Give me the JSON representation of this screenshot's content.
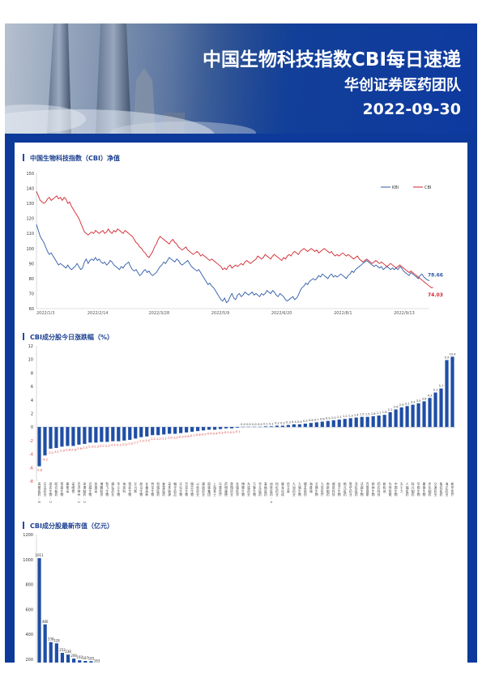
{
  "header": {
    "title": "中国生物科技指数CBI每日速递",
    "subtitle": "华创证券医药团队",
    "date": "2022-09-30"
  },
  "sections": {
    "nav_title": "中国生物科技指数（CBI）净值",
    "change_title": "CBI成分股今日涨跌幅（%）",
    "cap_title": "CBI成分股最新市值（亿元）"
  },
  "colors": {
    "frame": "#0d3a9a",
    "kbi": "#2e5aa8",
    "cbi": "#d0262f",
    "bar": "#1f4ea5",
    "negative_label": "#e0413f"
  },
  "chart_data": [
    {
      "type": "line",
      "title": "中国生物科技指数（CBI）净值",
      "x_ticks": [
        "2022/1/3",
        "2022/2/14",
        "2022/3/28",
        "2022/5/9",
        "2022/6/20",
        "2022/8/1",
        "2022/9/13"
      ],
      "ylim": [
        60,
        150
      ],
      "y_ticks": [
        60,
        70,
        80,
        90,
        100,
        110,
        120,
        130,
        140,
        150
      ],
      "legend": "top-right",
      "series": [
        {
          "name": "KBI",
          "color": "#2e5aa8",
          "last_label": "78.66",
          "values": [
            116,
            112,
            108,
            106,
            104,
            101,
            98,
            96,
            97,
            95,
            93,
            91,
            89,
            90,
            89,
            88,
            87,
            89,
            87,
            86,
            87,
            88,
            90,
            88,
            86,
            87,
            91,
            93,
            90,
            92,
            93,
            92,
            94,
            92,
            93,
            91,
            90,
            91,
            89,
            90,
            92,
            91,
            89,
            88,
            87,
            86,
            88,
            87,
            89,
            90,
            91,
            88,
            86,
            85,
            86,
            84,
            82,
            83,
            85,
            86,
            84,
            85,
            83,
            82,
            83,
            84,
            86,
            88,
            89,
            91,
            90,
            92,
            94,
            93,
            92,
            91,
            93,
            92,
            90,
            89,
            90,
            91,
            92,
            90,
            88,
            87,
            86,
            85,
            86,
            84,
            82,
            80,
            78,
            76,
            77,
            75,
            74,
            72,
            70,
            68,
            66,
            65,
            67,
            64,
            65,
            68,
            70,
            67,
            66,
            69,
            70,
            68,
            69,
            71,
            70,
            69,
            70,
            71,
            69,
            70,
            69,
            68,
            70,
            69,
            70,
            72,
            71,
            70,
            72,
            71,
            69,
            68,
            70,
            69,
            68,
            66,
            65,
            66,
            67,
            68,
            66,
            67,
            69,
            72,
            74,
            75,
            77,
            76,
            78,
            79,
            80,
            79,
            80,
            82,
            81,
            83,
            82,
            81,
            80,
            82,
            83,
            81,
            82,
            81,
            82,
            83,
            82,
            81,
            80,
            82,
            83,
            85,
            84,
            86,
            87,
            88,
            89,
            90,
            91,
            92,
            91,
            90,
            89,
            88,
            89,
            88,
            87,
            88,
            86,
            87,
            88,
            87,
            86,
            87,
            86,
            87,
            86,
            88,
            87,
            85,
            84,
            83,
            82,
            84,
            83,
            82,
            81,
            80,
            82,
            83,
            81,
            80,
            79,
            78.66
          ]
        },
        {
          "name": "CBI",
          "color": "#d0262f",
          "last_label": "74.03",
          "values": [
            138,
            135,
            132,
            131,
            130,
            131,
            133,
            134,
            132,
            133,
            134,
            135,
            133,
            134,
            132,
            134,
            133,
            130,
            131,
            128,
            126,
            124,
            122,
            120,
            117,
            114,
            111,
            110,
            109,
            110,
            111,
            110,
            112,
            111,
            110,
            111,
            112,
            110,
            111,
            113,
            111,
            110,
            112,
            111,
            113,
            112,
            111,
            110,
            112,
            111,
            110,
            109,
            108,
            106,
            104,
            103,
            101,
            100,
            98,
            97,
            95,
            94,
            96,
            98,
            101,
            103,
            106,
            108,
            107,
            106,
            105,
            104,
            103,
            105,
            106,
            104,
            103,
            101,
            100,
            99,
            100,
            101,
            99,
            98,
            97,
            96,
            97,
            98,
            97,
            95,
            96,
            95,
            94,
            93,
            92,
            93,
            92,
            91,
            90,
            89,
            88,
            86,
            87,
            86,
            88,
            89,
            87,
            88,
            89,
            88,
            89,
            90,
            89,
            91,
            92,
            91,
            90,
            91,
            92,
            93,
            95,
            94,
            93,
            94,
            96,
            95,
            94,
            93,
            95,
            96,
            95,
            94,
            93,
            92,
            94,
            93,
            95,
            96,
            95,
            97,
            98,
            97,
            96,
            98,
            99,
            100,
            99,
            98,
            99,
            100,
            99,
            98,
            99,
            97,
            98,
            99,
            100,
            99,
            98,
            97,
            98,
            96,
            95,
            96,
            95,
            96,
            97,
            96,
            95,
            96,
            95,
            94,
            93,
            94,
            95,
            93,
            92,
            91,
            92,
            93,
            92,
            91,
            90,
            91,
            92,
            91,
            90,
            91,
            90,
            89,
            88,
            89,
            90,
            89,
            88,
            87,
            88,
            89,
            88,
            87,
            86,
            85,
            84,
            85,
            84,
            83,
            82,
            81,
            80,
            79,
            78,
            77,
            76,
            75,
            74,
            74.03
          ]
        }
      ]
    },
    {
      "type": "bar",
      "title": "CBI成分股今日涨跌幅（%）",
      "ylim": [
        -8,
        12
      ],
      "y_ticks": [
        -8,
        -6,
        -4,
        -2,
        0,
        2,
        4,
        6,
        8,
        10,
        12
      ],
      "categories": [
        "再鼎医药-B",
        "贝达药业",
        "君实生物-U",
        "昭衍新药",
        "荣昌生物",
        "康希诺",
        "诺唯赞",
        "百济神州-U",
        "泽璟制药-U",
        "迈威生物",
        "凯莱英",
        "博腾股份",
        "智飞生物",
        "康弘药业",
        "华兰生物",
        "海思科",
        "我武生物",
        "艾力斯",
        "前沿生物",
        "长春高新",
        "特宝生物",
        "恒瑞医药",
        "复星医药",
        "诺禾致源",
        "翰宇药品",
        "天坛生物",
        "百克生物",
        "微芯生物",
        "以岭药业",
        "康辰药业",
        "丽珠集团",
        "上海莱士",
        "乐普医疗",
        "药明康德",
        "奥翔药业",
        "金域医学",
        "博雅生物",
        "东诚药业",
        "万泰生物",
        "华东医药",
        "泰格医药",
        "迪哲医药-U",
        "科伦药业",
        "康龙化成",
        "信立泰",
        "九洲药业",
        "九强生物",
        "健友股份",
        "海普瑞",
        "艾德生物",
        "九安医疗",
        "南新制药",
        "键凯科技",
        "益方生物",
        "皓元医药",
        "恩华药业",
        "亚虹医药",
        "沃森生物",
        "百普赛斯",
        "欧林生物",
        "药石科技",
        "新和成",
        "先导智能",
        "中国生物",
        "天士力",
        "人福医药",
        "科兴制药",
        "华熙生物",
        "康泰生物",
        "步长制药",
        "艾迪药业",
        "鲁抗医药",
        "海正药业",
        "新华医疗"
      ],
      "values": [
        -5.8,
        -4.2,
        -3.2,
        -3.1,
        -2.9,
        -2.8,
        -2.8,
        -2.6,
        -2.5,
        -2.3,
        -2.3,
        -2.2,
        -2.2,
        -2.1,
        -2.1,
        -2.0,
        -1.9,
        -1.7,
        -1.5,
        -1.4,
        -1.2,
        -1.2,
        -1.1,
        -1.0,
        -1.0,
        -0.9,
        -0.8,
        -0.7,
        -0.6,
        -0.5,
        -0.4,
        -0.4,
        -0.3,
        -0.2,
        -0.2,
        -0.1,
        0.0,
        0.0,
        0.0,
        0.0,
        0.1,
        0.1,
        0.2,
        0.2,
        0.3,
        0.4,
        0.4,
        0.5,
        0.6,
        0.7,
        0.8,
        0.9,
        1.0,
        1.1,
        1.2,
        1.3,
        1.4,
        1.5,
        1.5,
        1.6,
        1.7,
        1.8,
        2.2,
        2.6,
        2.9,
        3.1,
        3.3,
        3.5,
        3.8,
        4.3,
        5.1,
        5.7,
        9.9,
        10.4
      ],
      "data_labels": [
        "-5.8",
        "-4.2",
        "-3.2",
        "-3.1",
        "-2.9",
        "-2.8",
        "-2.8",
        "-2.6",
        "-2.5",
        "-2.3",
        "-2.3",
        "-2.2",
        "-2.2",
        "-2.1",
        "-2.1",
        "-2.0",
        "-1.9",
        "-1.7",
        "-1.5",
        "-1.4",
        "-1.2",
        "-1.2",
        "-1.1",
        "-1.0",
        "-1.0",
        "-0.9",
        "-0.8",
        "-0.7",
        "-0.6",
        "-0.5",
        "-0.4",
        "-0.4",
        "-0.3",
        "-0.2",
        "-0.2",
        "-0.1",
        "0.0",
        "0.0",
        "0.0",
        "0.0",
        "0.1",
        "0.1",
        "0.2",
        "0.2",
        "0.3",
        "0.4",
        "0.4",
        "0.5",
        "0.6",
        "0.7",
        "0.8",
        "0.9",
        "1.0",
        "1.1",
        "1.2",
        "1.3",
        "1.4",
        "1.5",
        "1.5",
        "1.6",
        "1.7",
        "1.8",
        "2.2",
        "2.6",
        "2.9",
        "3.1",
        "3.3",
        "3.5",
        "3.8",
        "4.3",
        "5.1",
        "5.7",
        "9.9",
        "10.4"
      ]
    },
    {
      "type": "bar",
      "title": "CBI成分股最新市值（亿元）",
      "ylim": [
        200,
        1200
      ],
      "y_ticks": [
        200,
        400,
        600,
        800,
        1000,
        1200
      ],
      "values": [
        1011,
        480,
        338,
        328,
        252,
        238,
        206,
        192,
        187,
        185,
        163
      ],
      "data_labels": [
        "1011",
        "480",
        "338",
        "328",
        "252",
        "238",
        "206",
        "192",
        "187",
        "185",
        "163"
      ]
    }
  ]
}
